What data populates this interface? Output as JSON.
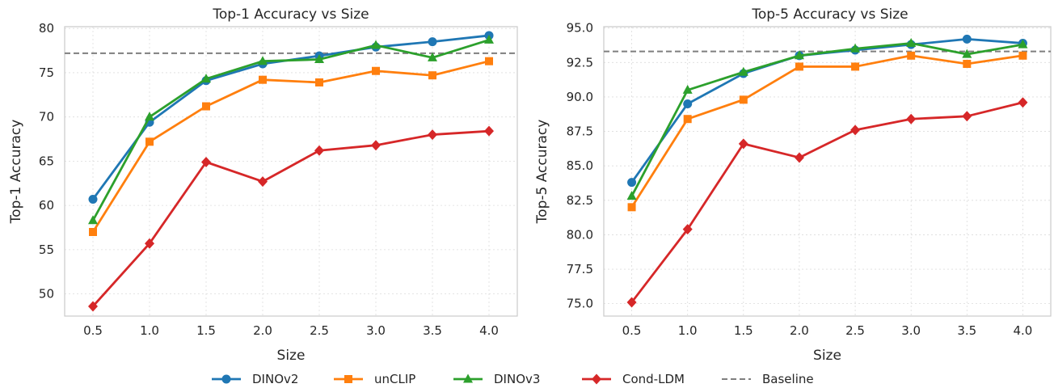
{
  "chart_data": [
    {
      "type": "line",
      "title": "Top-1 Accuracy vs Size",
      "xlabel": "Size",
      "ylabel": "Top-1 Accuracy",
      "x": [
        0.5,
        1.0,
        1.5,
        2.0,
        2.5,
        3.0,
        3.5,
        4.0
      ],
      "xticks": [
        "0.5",
        "1.0",
        "1.5",
        "2.0",
        "2.5",
        "3.0",
        "3.5",
        "4.0"
      ],
      "yticks": [
        "50",
        "55",
        "60",
        "65",
        "70",
        "75",
        "80"
      ],
      "xlim": [
        0.25,
        4.25
      ],
      "ylim": [
        47.5,
        80.2
      ],
      "grid": true,
      "series": [
        {
          "name": "DINOv2",
          "values": [
            60.7,
            69.4,
            74.1,
            76.0,
            76.9,
            77.9,
            78.5,
            79.2
          ]
        },
        {
          "name": "unCLIP",
          "values": [
            57.0,
            67.2,
            71.2,
            74.2,
            73.9,
            75.2,
            74.7,
            76.3
          ]
        },
        {
          "name": "DINOv3",
          "values": [
            58.3,
            70.0,
            74.3,
            76.3,
            76.5,
            78.1,
            76.7,
            78.7
          ]
        },
        {
          "name": "Cond-LDM",
          "values": [
            48.6,
            55.7,
            64.9,
            62.7,
            66.2,
            66.8,
            68.0,
            68.4
          ]
        }
      ],
      "baseline": 77.2
    },
    {
      "type": "line",
      "title": "Top-5 Accuracy vs Size",
      "xlabel": "Size",
      "ylabel": "Top-5 Accuracy",
      "x": [
        0.5,
        1.0,
        1.5,
        2.0,
        2.5,
        3.0,
        3.5,
        4.0
      ],
      "xticks": [
        "0.5",
        "1.0",
        "1.5",
        "2.0",
        "2.5",
        "3.0",
        "3.5",
        "4.0"
      ],
      "yticks": [
        "75.0",
        "77.5",
        "80.0",
        "82.5",
        "85.0",
        "87.5",
        "90.0",
        "92.5",
        "95.0"
      ],
      "xlim": [
        0.25,
        4.25
      ],
      "ylim": [
        74.1,
        95.1
      ],
      "grid": true,
      "series": [
        {
          "name": "DINOv2",
          "values": [
            83.8,
            89.5,
            91.7,
            93.0,
            93.4,
            93.8,
            94.2,
            93.9
          ]
        },
        {
          "name": "unCLIP",
          "values": [
            82.0,
            88.4,
            89.8,
            92.2,
            92.2,
            93.0,
            92.4,
            93.0
          ]
        },
        {
          "name": "DINOv3",
          "values": [
            82.8,
            90.5,
            91.8,
            93.0,
            93.5,
            93.9,
            93.1,
            93.8
          ]
        },
        {
          "name": "Cond-LDM",
          "values": [
            75.1,
            80.4,
            86.6,
            85.6,
            87.6,
            88.4,
            88.6,
            89.6
          ]
        }
      ],
      "baseline": 93.3
    }
  ],
  "legend": {
    "placement": "bottom-center",
    "items": [
      {
        "label": "DINOv2",
        "color": "#1f77b4",
        "marker": "circle",
        "style": "solid"
      },
      {
        "label": "unCLIP",
        "color": "#ff7f0e",
        "marker": "square",
        "style": "solid"
      },
      {
        "label": "DINOv3",
        "color": "#2ca02c",
        "marker": "triangle",
        "style": "solid"
      },
      {
        "label": "Cond-LDM",
        "color": "#d62728",
        "marker": "diamond",
        "style": "solid"
      },
      {
        "label": "Baseline",
        "color": "#7f7f7f",
        "marker": "none",
        "style": "dashed"
      }
    ]
  }
}
